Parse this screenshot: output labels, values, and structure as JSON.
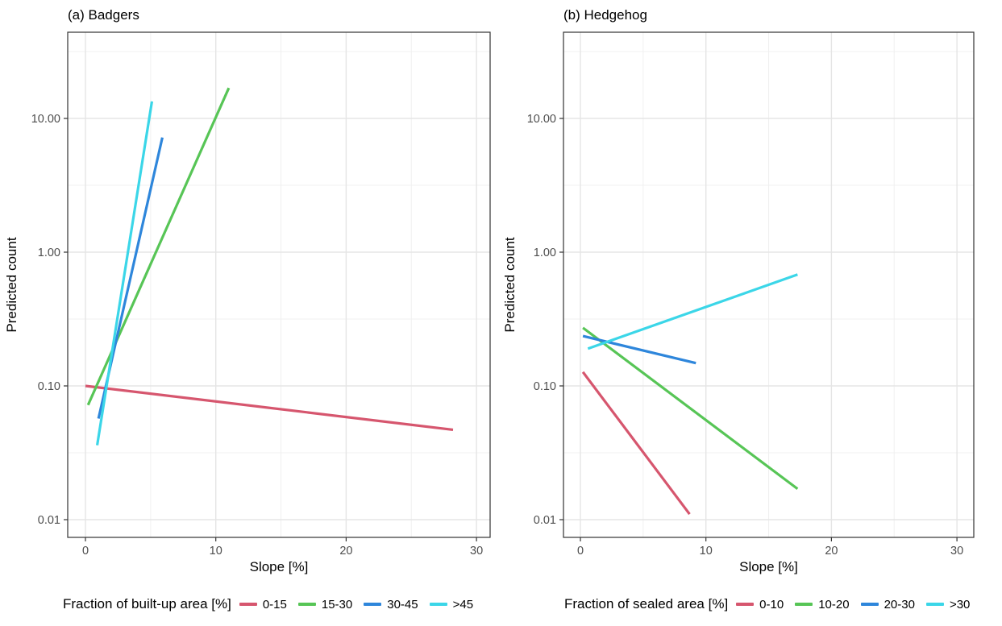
{
  "figure": {
    "panels": [
      {
        "id": "a",
        "title": "(a) Badgers",
        "xlabel": "Slope [%]",
        "ylabel": "Predicted count",
        "legend": {
          "title": "Fraction of built-up area [%]",
          "items": [
            {
              "label": "0-15",
              "color": "#D6566E"
            },
            {
              "label": "15-30",
              "color": "#57C556"
            },
            {
              "label": "30-45",
              "color": "#2E86DB"
            },
            {
              "label": ">45",
              "color": "#3BD6E8"
            }
          ]
        }
      },
      {
        "id": "b",
        "title": "(b) Hedgehog",
        "xlabel": "Slope [%]",
        "ylabel": "Predicted count",
        "legend": {
          "title": "Fraction of sealed area [%]",
          "items": [
            {
              "label": "0-10",
              "color": "#D6566E"
            },
            {
              "label": "10-20",
              "color": "#57C556"
            },
            {
              "label": "20-30",
              "color": "#2E86DB"
            },
            {
              "label": ">30",
              "color": "#3BD6E8"
            }
          ]
        }
      }
    ],
    "colors": {
      "red": "#D6566E",
      "green": "#57C556",
      "blue": "#2E86DB",
      "cyan": "#3BD6E8",
      "grid_major": "#E5E5E5",
      "grid_minor": "#F0F0F0",
      "panel_border": "#333333",
      "tick_label": "#4D4D4D",
      "text": "#000000"
    }
  },
  "chart_data": [
    {
      "type": "line",
      "title": "(a) Badgers",
      "xlabel": "Slope [%]",
      "ylabel": "Predicted count",
      "x_ticks": [
        0,
        10,
        20,
        30
      ],
      "x_tick_labels": [
        "0",
        "10",
        "20",
        "30"
      ],
      "x_minor_ticks": [
        5,
        15,
        25
      ],
      "y_scale": "log10",
      "y_ticks": [
        0.01,
        0.1,
        1,
        10
      ],
      "y_tick_labels": [
        "0.01",
        "0.10",
        "1.00",
        "10.00"
      ],
      "y_minor_ticks": [
        0.0316,
        0.316,
        3.16,
        31.6
      ],
      "xlim": [
        -1.4,
        31.2
      ],
      "ylim": [
        0.0074,
        44
      ],
      "grid": true,
      "legend_position": "bottom",
      "legend_title": "Fraction of built-up area [%]",
      "series": [
        {
          "name": "0-15",
          "color": "#D6566E",
          "x": [
            0.0,
            28.2
          ],
          "y": [
            0.1,
            0.047
          ]
        },
        {
          "name": "15-30",
          "color": "#57C556",
          "x": [
            0.2,
            11.0
          ],
          "y": [
            0.072,
            16.9
          ]
        },
        {
          "name": "30-45",
          "color": "#2E86DB",
          "x": [
            1.0,
            5.9
          ],
          "y": [
            0.057,
            7.2
          ]
        },
        {
          "name": ">45",
          "color": "#3BD6E8",
          "x": [
            0.9,
            5.1
          ],
          "y": [
            0.036,
            13.4
          ]
        }
      ]
    },
    {
      "type": "line",
      "title": "(b) Hedgehog",
      "xlabel": "Slope [%]",
      "ylabel": "Predicted count",
      "x_ticks": [
        0,
        10,
        20,
        30
      ],
      "x_tick_labels": [
        "0",
        "10",
        "20",
        "30"
      ],
      "x_minor_ticks": [
        5,
        15,
        25
      ],
      "y_scale": "log10",
      "y_ticks": [
        0.01,
        0.1,
        1,
        10
      ],
      "y_tick_labels": [
        "0.01",
        "0.10",
        "1.00",
        "10.00"
      ],
      "y_minor_ticks": [
        0.0316,
        0.316,
        3.16,
        31.6
      ],
      "xlim": [
        -1.35,
        31.35
      ],
      "ylim": [
        0.0074,
        44
      ],
      "grid": true,
      "legend_position": "bottom",
      "legend_title": "Fraction of sealed area [%]",
      "series": [
        {
          "name": "0-10",
          "color": "#D6566E",
          "x": [
            0.2,
            8.7
          ],
          "y": [
            0.127,
            0.011
          ]
        },
        {
          "name": "10-20",
          "color": "#57C556",
          "x": [
            0.2,
            17.3
          ],
          "y": [
            0.272,
            0.017
          ]
        },
        {
          "name": "20-30",
          "color": "#2E86DB",
          "x": [
            0.2,
            9.2
          ],
          "y": [
            0.236,
            0.148
          ]
        },
        {
          "name": ">30",
          "color": "#3BD6E8",
          "x": [
            0.6,
            17.3
          ],
          "y": [
            0.19,
            0.68
          ]
        }
      ]
    }
  ]
}
